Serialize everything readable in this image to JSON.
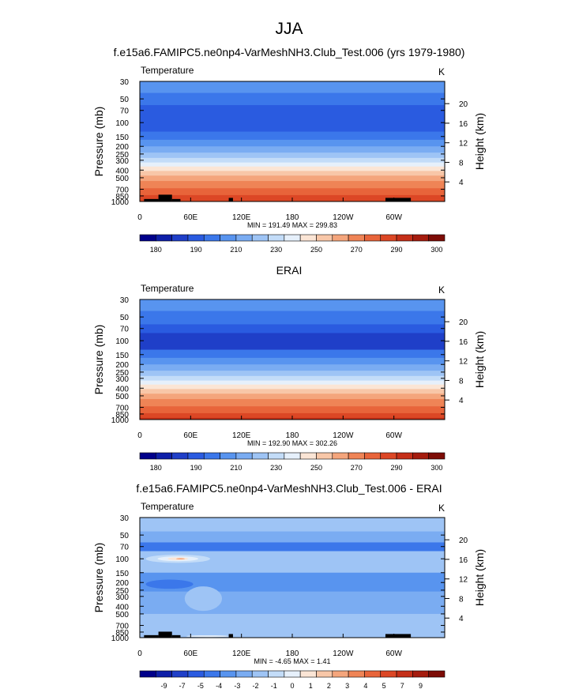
{
  "figure_title": "JJA",
  "chart_data": [
    {
      "type": "heatmap",
      "title": "f.e15a6.FAMIPC5.ne0np4-VarMeshNH3.Club_Test.006 (yrs 1979-1980)",
      "left_string": "Temperature",
      "units": "K",
      "ylabel": "Pressure (mb)",
      "ylabel_right": "Height (km)",
      "x_ticks": [
        "0",
        "60E",
        "120E",
        "180",
        "120W",
        "60W"
      ],
      "y_ticks": [
        "30",
        "50",
        "70",
        "100",
        "150",
        "200",
        "250",
        "300",
        "400",
        "500",
        "700",
        "850",
        "1000"
      ],
      "height_ticks": [
        "20",
        "16",
        "12",
        "8",
        "4"
      ],
      "min_max": "MIN = 191.49  MAX = 299.83",
      "colorbar_labels": [
        "180",
        "190",
        "210",
        "230",
        "250",
        "270",
        "290",
        "300"
      ],
      "colormap": [
        "#00008a",
        "#0e1fa8",
        "#1f3fc8",
        "#2a5be0",
        "#3b77ea",
        "#5894ef",
        "#7aacf2",
        "#9ec4f5",
        "#c3dcf8",
        "#e6f0fb",
        "#fbe5d5",
        "#f8c7a8",
        "#f4a57c",
        "#ef8456",
        "#e8643a",
        "#dc4725",
        "#c52f18",
        "#a51c0e",
        "#7d0c06"
      ],
      "bands": [
        {
          "p_top": 30,
          "p_bottom": 42,
          "color": "#5894ef"
        },
        {
          "p_top": 42,
          "p_bottom": 60,
          "color": "#3b77ea"
        },
        {
          "p_top": 60,
          "p_bottom": 130,
          "color": "#2a5be0"
        },
        {
          "p_top": 130,
          "p_bottom": 165,
          "color": "#3b77ea"
        },
        {
          "p_top": 165,
          "p_bottom": 200,
          "color": "#5894ef"
        },
        {
          "p_top": 200,
          "p_bottom": 240,
          "color": "#7aacf2"
        },
        {
          "p_top": 240,
          "p_bottom": 280,
          "color": "#9ec4f5"
        },
        {
          "p_top": 280,
          "p_bottom": 320,
          "color": "#c3dcf8"
        },
        {
          "p_top": 320,
          "p_bottom": 360,
          "color": "#e6f0fb"
        },
        {
          "p_top": 360,
          "p_bottom": 410,
          "color": "#fbe5d5"
        },
        {
          "p_top": 410,
          "p_bottom": 470,
          "color": "#f8c7a8"
        },
        {
          "p_top": 470,
          "p_bottom": 550,
          "color": "#f4a57c"
        },
        {
          "p_top": 550,
          "p_bottom": 680,
          "color": "#ef8456"
        },
        {
          "p_top": 680,
          "p_bottom": 830,
          "color": "#e8643a"
        },
        {
          "p_top": 830,
          "p_bottom": 1000,
          "color": "#dc4725"
        }
      ],
      "topography": [
        {
          "lon_start": 5,
          "lon_end": 22,
          "p_top": 930
        },
        {
          "lon_start": 22,
          "lon_end": 38,
          "p_top": 820
        },
        {
          "lon_start": 38,
          "lon_end": 48,
          "p_top": 930
        },
        {
          "lon_start": 105,
          "lon_end": 110,
          "p_top": 900
        },
        {
          "lon_start": 290,
          "lon_end": 320,
          "p_top": 900
        }
      ]
    },
    {
      "type": "heatmap",
      "title": "ERAI",
      "left_string": "Temperature",
      "units": "K",
      "ylabel": "Pressure (mb)",
      "ylabel_right": "Height (km)",
      "x_ticks": [
        "0",
        "60E",
        "120E",
        "180",
        "120W",
        "60W"
      ],
      "y_ticks": [
        "30",
        "50",
        "70",
        "100",
        "150",
        "200",
        "250",
        "300",
        "400",
        "500",
        "700",
        "850",
        "1000"
      ],
      "height_ticks": [
        "20",
        "16",
        "12",
        "8",
        "4"
      ],
      "min_max": "MIN = 192.90  MAX = 302.26",
      "colorbar_labels": [
        "180",
        "190",
        "210",
        "230",
        "250",
        "270",
        "290",
        "300"
      ],
      "colormap": [
        "#00008a",
        "#0e1fa8",
        "#1f3fc8",
        "#2a5be0",
        "#3b77ea",
        "#5894ef",
        "#7aacf2",
        "#9ec4f5",
        "#c3dcf8",
        "#e6f0fb",
        "#fbe5d5",
        "#f8c7a8",
        "#f4a57c",
        "#ef8456",
        "#e8643a",
        "#dc4725",
        "#c52f18",
        "#a51c0e",
        "#7d0c06"
      ],
      "bands": [
        {
          "p_top": 30,
          "p_bottom": 42,
          "color": "#5894ef"
        },
        {
          "p_top": 42,
          "p_bottom": 62,
          "color": "#3b77ea"
        },
        {
          "p_top": 62,
          "p_bottom": 80,
          "color": "#2a5be0"
        },
        {
          "p_top": 80,
          "p_bottom": 130,
          "color": "#1f3fc8"
        },
        {
          "p_top": 130,
          "p_bottom": 165,
          "color": "#3b77ea"
        },
        {
          "p_top": 165,
          "p_bottom": 200,
          "color": "#5894ef"
        },
        {
          "p_top": 200,
          "p_bottom": 240,
          "color": "#7aacf2"
        },
        {
          "p_top": 240,
          "p_bottom": 280,
          "color": "#9ec4f5"
        },
        {
          "p_top": 280,
          "p_bottom": 320,
          "color": "#c3dcf8"
        },
        {
          "p_top": 320,
          "p_bottom": 360,
          "color": "#e6f0fb"
        },
        {
          "p_top": 360,
          "p_bottom": 410,
          "color": "#fbe5d5"
        },
        {
          "p_top": 410,
          "p_bottom": 470,
          "color": "#f8c7a8"
        },
        {
          "p_top": 470,
          "p_bottom": 550,
          "color": "#f4a57c"
        },
        {
          "p_top": 550,
          "p_bottom": 680,
          "color": "#ef8456"
        },
        {
          "p_top": 680,
          "p_bottom": 830,
          "color": "#e8643a"
        },
        {
          "p_top": 830,
          "p_bottom": 950,
          "color": "#dc4725"
        },
        {
          "p_top": 950,
          "p_bottom": 1000,
          "color": "#c52f18"
        }
      ],
      "topography": []
    },
    {
      "type": "heatmap",
      "title": "f.e15a6.FAMIPC5.ne0np4-VarMeshNH3.Club_Test.006 - ERAI",
      "left_string": "Temperature",
      "units": "K",
      "ylabel": "Pressure (mb)",
      "ylabel_right": "Height (km)",
      "x_ticks": [
        "0",
        "60E",
        "120E",
        "180",
        "120W",
        "60W"
      ],
      "y_ticks": [
        "30",
        "50",
        "70",
        "100",
        "150",
        "200",
        "250",
        "300",
        "400",
        "500",
        "700",
        "850",
        "1000"
      ],
      "height_ticks": [
        "20",
        "16",
        "12",
        "8",
        "4"
      ],
      "min_max": "MIN = -4.65  MAX =  1.41",
      "colorbar_labels": [
        "-9",
        "-7",
        "-5",
        "-4",
        "-3",
        "-2",
        "-1",
        "0",
        "1",
        "2",
        "3",
        "4",
        "5",
        "7",
        "9"
      ],
      "colormap": [
        "#00008a",
        "#0e1fa8",
        "#1f3fc8",
        "#2a5be0",
        "#3b77ea",
        "#5894ef",
        "#7aacf2",
        "#9ec4f5",
        "#c3dcf8",
        "#e6f0fb",
        "#fbe5d5",
        "#f8c7a8",
        "#f4a57c",
        "#ef8456",
        "#e8643a",
        "#dc4725",
        "#c52f18",
        "#a51c0e",
        "#7d0c06"
      ],
      "bands": [
        {
          "p_top": 30,
          "p_bottom": 45,
          "color": "#9ec4f5"
        },
        {
          "p_top": 45,
          "p_bottom": 62,
          "color": "#7aacf2"
        },
        {
          "p_top": 62,
          "p_bottom": 80,
          "color": "#3b77ea"
        },
        {
          "p_top": 80,
          "p_bottom": 150,
          "color": "#9ec4f5"
        },
        {
          "p_top": 150,
          "p_bottom": 260,
          "color": "#5894ef"
        },
        {
          "p_top": 260,
          "p_bottom": 500,
          "color": "#7aacf2"
        },
        {
          "p_top": 500,
          "p_bottom": 1000,
          "color": "#9ec4f5"
        }
      ],
      "anomalies": [
        {
          "lon": 45,
          "p": 100,
          "lon_radius": 38,
          "p_radius": 12,
          "color": "#c3dcf8"
        },
        {
          "lon": 45,
          "p": 100,
          "lon_radius": 24,
          "p_radius": 7,
          "color": "#e6f0fb"
        },
        {
          "lon": 45,
          "p": 100,
          "lon_radius": 12,
          "p_radius": 4,
          "color": "#fbe5d5"
        },
        {
          "lon": 48,
          "p": 100,
          "lon_radius": 5,
          "p_radius": 2,
          "color": "#f4a57c"
        },
        {
          "lon": 35,
          "p": 210,
          "lon_radius": 28,
          "p_radius": 28,
          "color": "#3b77ea"
        },
        {
          "lon": 75,
          "p": 320,
          "lon_radius": 22,
          "p_radius": 110,
          "color": "#9ec4f5"
        },
        {
          "lon": 80,
          "p": 960,
          "lon_radius": 25,
          "p_radius": 25,
          "color": "#e6f0fb"
        }
      ],
      "topography": [
        {
          "lon_start": 5,
          "lon_end": 22,
          "p_top": 930
        },
        {
          "lon_start": 22,
          "lon_end": 38,
          "p_top": 840
        },
        {
          "lon_start": 38,
          "lon_end": 48,
          "p_top": 930
        },
        {
          "lon_start": 105,
          "lon_end": 110,
          "p_top": 900
        },
        {
          "lon_start": 290,
          "lon_end": 320,
          "p_top": 900
        }
      ]
    }
  ]
}
